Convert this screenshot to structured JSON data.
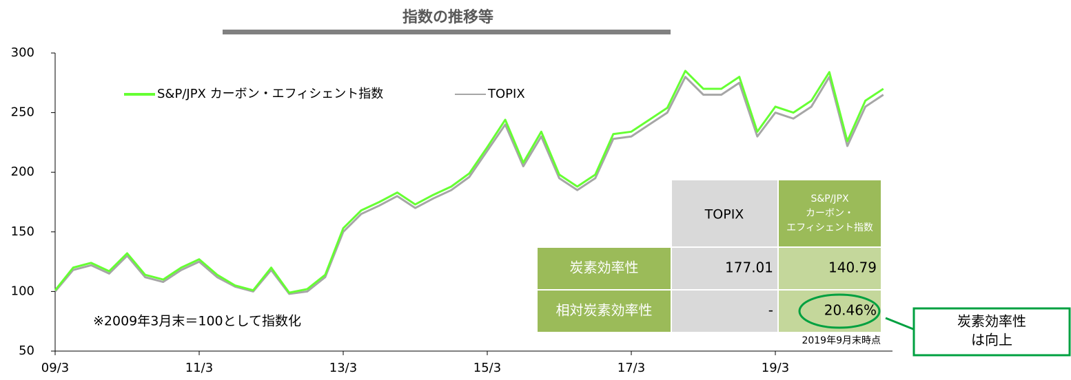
{
  "chart_data": {
    "type": "line",
    "title": "指数の推移等",
    "categories": [
      "09/3",
      null,
      null,
      null,
      null,
      null,
      null,
      null,
      "11/3",
      null,
      null,
      null,
      null,
      null,
      null,
      null,
      "13/3",
      null,
      null,
      null,
      null,
      null,
      null,
      null,
      "15/3",
      null,
      null,
      null,
      null,
      null,
      null,
      null,
      "17/3",
      null,
      null,
      null,
      null,
      null,
      null,
      null,
      "19/3",
      null,
      null,
      null,
      null,
      null,
      null
    ],
    "series": [
      {
        "name": "S&P/JPX カーボン・エフィシェント指数",
        "color": "#66ff33",
        "values": [
          101,
          120,
          124,
          117,
          132,
          114,
          110,
          120,
          127,
          114,
          105,
          101,
          120,
          99,
          102,
          114,
          153,
          168,
          175,
          183,
          173,
          181,
          188,
          199,
          221,
          244,
          208,
          234,
          198,
          188,
          198,
          232,
          234,
          244,
          254,
          285,
          270,
          270,
          280,
          234,
          255,
          250,
          260,
          284,
          226,
          260,
          270
        ]
      },
      {
        "name": "TOPIX",
        "color": "#a6a6a6",
        "values": [
          100,
          118,
          122,
          115,
          130,
          112,
          108,
          118,
          125,
          112,
          104,
          100,
          118,
          98,
          100,
          112,
          150,
          165,
          172,
          180,
          170,
          178,
          185,
          196,
          218,
          240,
          205,
          230,
          195,
          185,
          195,
          228,
          230,
          240,
          250,
          280,
          265,
          265,
          275,
          230,
          250,
          245,
          255,
          280,
          222,
          255,
          265
        ]
      }
    ],
    "ylim": [
      50,
      300
    ],
    "yticks": [
      50,
      100,
      150,
      200,
      250,
      300
    ],
    "note": "※2009年3月末＝100として指数化",
    "table": {
      "header": [
        "TOPIX",
        [
          "S&P/JPX",
          "カーボン・",
          "エフィシェント指数"
        ]
      ],
      "rows": [
        [
          "炭素効率性",
          "177.01",
          "140.79"
        ],
        [
          "相対炭素効率性",
          "-",
          "20.46%"
        ]
      ],
      "footnote": "2019年9月末時点"
    },
    "callout": [
      "炭素効率性",
      "は向上"
    ]
  }
}
